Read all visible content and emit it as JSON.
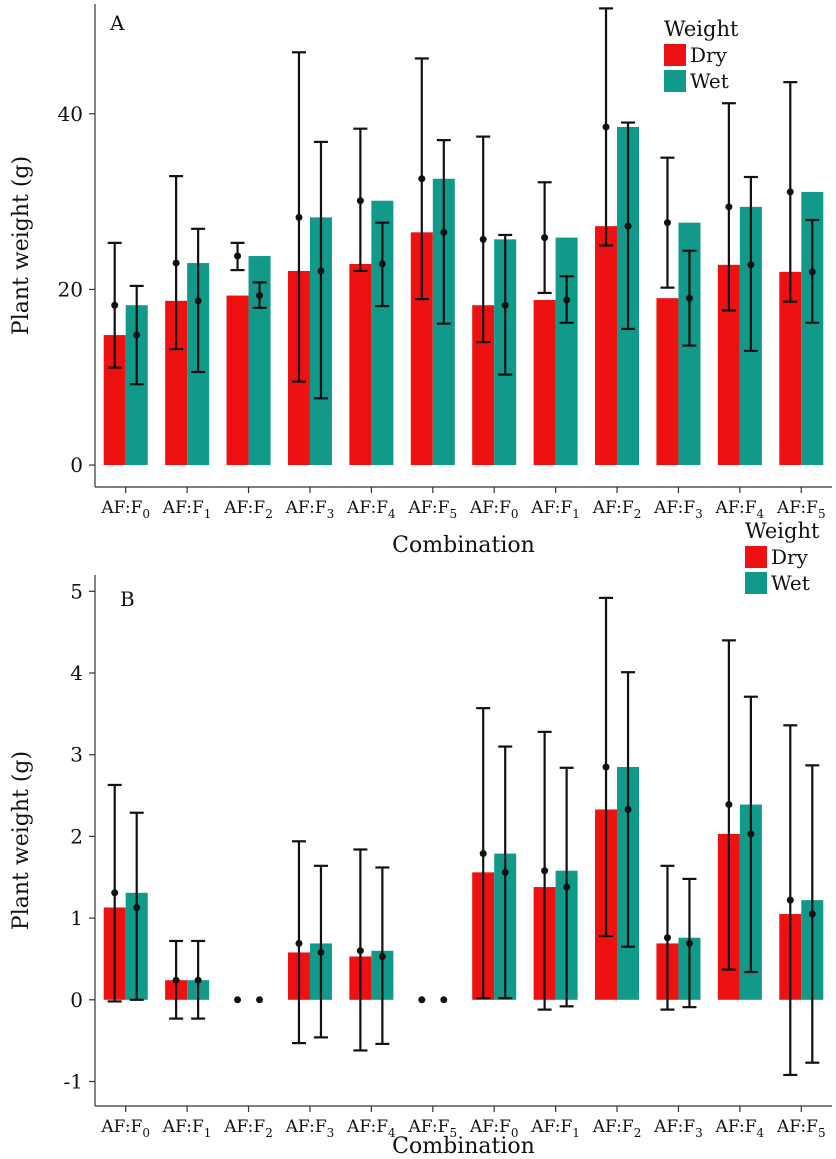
{
  "colors": {
    "dry": "#ee1111",
    "wet": "#11998a"
  },
  "chart_data": [
    {
      "type": "bar",
      "panel_label": "A",
      "categories": [
        "AF:F0",
        "AF:F1",
        "AF:F2",
        "AF:F3",
        "AF:F4",
        "AF:F5",
        "AF:F0",
        "AF:F1",
        "AF:F2",
        "AF:F3",
        "AF:F4",
        "AF:F5"
      ],
      "category_labels": [
        [
          "AF:F",
          "0"
        ],
        [
          "AF:F",
          "1"
        ],
        [
          "AF:F",
          "2"
        ],
        [
          "AF:F",
          "3"
        ],
        [
          "AF:F",
          "4"
        ],
        [
          "AF:F",
          "5"
        ],
        [
          "AF:F",
          "0"
        ],
        [
          "AF:F",
          "1"
        ],
        [
          "AF:F",
          "2"
        ],
        [
          "AF:F",
          "3"
        ],
        [
          "AF:F",
          "4"
        ],
        [
          "AF:F",
          "5"
        ]
      ],
      "xlabel": "Combination",
      "ylabel": "Plant weight (g)",
      "ylim": [
        -2.5,
        52.5
      ],
      "yticks": [
        0,
        20,
        40
      ],
      "legend": {
        "title": "Weight",
        "position": "top-right"
      },
      "series": [
        {
          "name": "Dry",
          "values": [
            14.8,
            18.7,
            19.3,
            22.1,
            22.9,
            26.5,
            18.2,
            18.8,
            27.2,
            19.0,
            22.8,
            22.0
          ],
          "points": [
            18.2,
            23.0,
            23.8,
            28.2,
            30.1,
            32.6,
            25.7,
            25.9,
            38.5,
            27.6,
            29.4,
            31.1
          ],
          "err_low": [
            11.1,
            13.2,
            22.2,
            9.5,
            22.1,
            18.9,
            14.0,
            19.6,
            25.0,
            20.2,
            17.6,
            18.6
          ],
          "err_high": [
            25.3,
            32.9,
            25.3,
            47.0,
            38.3,
            46.3,
            37.4,
            32.2,
            52.0,
            35.0,
            41.2,
            43.6
          ]
        },
        {
          "name": "Wet",
          "values": [
            18.2,
            23.0,
            23.8,
            28.2,
            30.1,
            32.6,
            25.7,
            25.9,
            38.5,
            27.6,
            29.4,
            31.1
          ],
          "points": [
            14.8,
            18.7,
            19.3,
            22.1,
            22.9,
            26.5,
            18.2,
            18.8,
            27.2,
            19.0,
            22.8,
            22.0
          ],
          "err_low": [
            9.2,
            10.6,
            17.9,
            7.6,
            18.1,
            16.1,
            10.3,
            16.2,
            15.5,
            13.6,
            13.0,
            16.2
          ],
          "err_high": [
            20.4,
            26.9,
            20.8,
            36.8,
            27.6,
            37.0,
            26.2,
            21.5,
            39.0,
            24.4,
            32.8,
            27.9
          ]
        }
      ]
    },
    {
      "type": "bar",
      "panel_label": "B",
      "categories": [
        "AF:F0",
        "AF:F1",
        "AF:F2",
        "AF:F3",
        "AF:F4",
        "AF:F5",
        "AF:F0",
        "AF:F1",
        "AF:F2",
        "AF:F3",
        "AF:F4",
        "AF:F5"
      ],
      "category_labels": [
        [
          "AF:F",
          "0"
        ],
        [
          "AF:F",
          "1"
        ],
        [
          "AF:F",
          "2"
        ],
        [
          "AF:F",
          "3"
        ],
        [
          "AF:F",
          "4"
        ],
        [
          "AF:F",
          "5"
        ],
        [
          "AF:F",
          "0"
        ],
        [
          "AF:F",
          "1"
        ],
        [
          "AF:F",
          "2"
        ],
        [
          "AF:F",
          "3"
        ],
        [
          "AF:F",
          "4"
        ],
        [
          "AF:F",
          "5"
        ]
      ],
      "xlabel": "Combination",
      "ylabel": "Plant weight (g)",
      "ylim": [
        -1.3,
        5.2
      ],
      "yticks": [
        -1,
        0,
        1,
        2,
        3,
        4,
        5
      ],
      "legend": {
        "title": "Weight",
        "position": "top-right"
      },
      "series": [
        {
          "name": "Dry",
          "values": [
            1.13,
            0.24,
            0.0,
            0.58,
            0.53,
            0.0,
            1.56,
            1.38,
            2.33,
            0.69,
            2.03,
            1.05
          ],
          "points": [
            1.31,
            0.24,
            0.0,
            0.69,
            0.6,
            0.0,
            1.79,
            1.58,
            2.85,
            0.76,
            2.39,
            1.22
          ],
          "err_low": [
            -0.02,
            -0.23,
            0.0,
            -0.53,
            -0.62,
            0.0,
            0.02,
            -0.12,
            0.78,
            -0.12,
            0.37,
            -0.92
          ],
          "err_high": [
            2.63,
            0.72,
            0.0,
            1.94,
            1.84,
            0.0,
            3.57,
            3.28,
            4.92,
            1.64,
            4.4,
            3.36
          ]
        },
        {
          "name": "Wet",
          "values": [
            1.31,
            0.24,
            0.0,
            0.69,
            0.6,
            0.0,
            1.79,
            1.58,
            2.85,
            0.76,
            2.39,
            1.22
          ],
          "points": [
            1.13,
            0.24,
            0.0,
            0.58,
            0.53,
            0.0,
            1.56,
            1.38,
            2.33,
            0.69,
            2.03,
            1.05
          ],
          "err_low": [
            0.0,
            -0.23,
            0.0,
            -0.46,
            -0.54,
            0.0,
            0.02,
            -0.08,
            0.65,
            -0.09,
            0.34,
            -0.77
          ],
          "err_high": [
            2.29,
            0.72,
            0.0,
            1.64,
            1.62,
            0.0,
            3.1,
            2.84,
            4.01,
            1.48,
            3.71,
            2.87
          ]
        }
      ]
    }
  ]
}
